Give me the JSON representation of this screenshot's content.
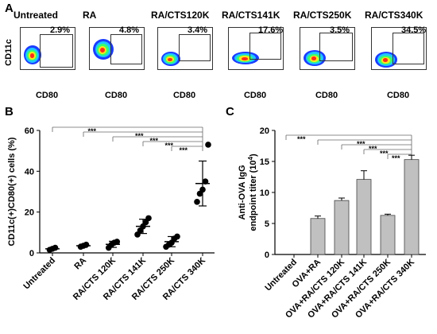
{
  "panelA": {
    "letter": "A",
    "ylabel": "CD11c",
    "xlabel": "CD80",
    "plots": [
      {
        "title": "Untreated",
        "pct": "2.9%"
      },
      {
        "title": "RA",
        "pct": "4.8%"
      },
      {
        "title": "RA/CTS120K",
        "pct": "3.4%"
      },
      {
        "title": "RA/CTS141K",
        "pct": "17.6%"
      },
      {
        "title": "RA/CTS250K",
        "pct": "3.5%"
      },
      {
        "title": "RA/CTS340K",
        "pct": "34.5%"
      }
    ]
  },
  "panelB": {
    "letter": "B",
    "sig": "***",
    "chart_data": {
      "type": "scatter",
      "ylabel": "CD11c(+)CD80(+) cells (%)",
      "ylim": [
        0,
        60
      ],
      "yticks": [
        "0",
        "20",
        "40",
        "60"
      ],
      "categories": [
        "Untreated",
        "RA",
        "RA/CTS 120K",
        "RA/CTS 141K",
        "RA/CTS 250K",
        "RA/CTS 340K"
      ],
      "points": [
        [
          1.5,
          2,
          2.5
        ],
        [
          3,
          3.5,
          4
        ],
        [
          2.5,
          4,
          5,
          5.5
        ],
        [
          9,
          11,
          13,
          15,
          17
        ],
        [
          3,
          4,
          5,
          7,
          8
        ],
        [
          25,
          29,
          31,
          35,
          53
        ]
      ],
      "mean": [
        2,
        3.5,
        4.2,
        13,
        5.5,
        34
      ],
      "sd": [
        0.5,
        0.8,
        1.5,
        3.5,
        2.5,
        11
      ],
      "grid": false
    }
  },
  "panelC": {
    "letter": "C",
    "sig": "***",
    "chart_data": {
      "type": "bar",
      "ylabel_line1": "Anti-OVA IgG",
      "ylabel_line2": "endpoint titer (10",
      "ylabel_sup": "4",
      "ylabel_close": ")",
      "ylim": [
        0,
        20
      ],
      "yticks": [
        "0",
        "5",
        "10",
        "15",
        "20"
      ],
      "categories": [
        "Untreated",
        "OVA+RA",
        "OVA+RA/CTS 120K",
        "OVA+RA/CTS 141K",
        "OVA+RA/CTS 250K",
        "OVA+RA/CTS 340K"
      ],
      "values": [
        0,
        5.8,
        8.7,
        12.1,
        6.3,
        15.3
      ],
      "errors": [
        0,
        0.4,
        0.4,
        1.4,
        0.2,
        0.7
      ],
      "grid": false
    }
  }
}
